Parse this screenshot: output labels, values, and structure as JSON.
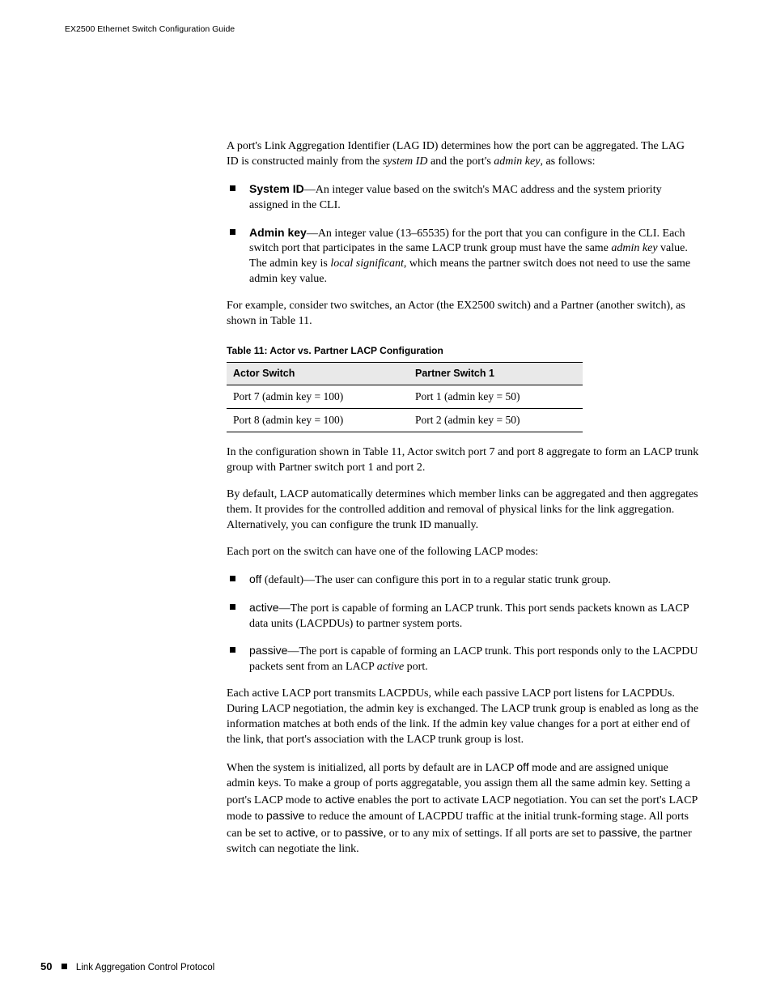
{
  "header": {
    "running_head": "EX2500 Ethernet Switch Configuration Guide"
  },
  "body": {
    "p1_a": "A port's Link Aggregation Identifier (LAG ID) determines how the port can be aggregated. The LAG ID is constructed mainly from the ",
    "p1_i1": "system ID",
    "p1_b": " and the port's ",
    "p1_i2": "admin key",
    "p1_c": ", as follows:",
    "li1_term": "System ID",
    "li1_text": "—An integer value based on the switch's MAC address and the system priority assigned in the CLI.",
    "li2_term": "Admin key",
    "li2_a": "—An integer value (13–65535) for the port that you can configure in the CLI. Each switch port that participates in the same LACP trunk group must have the same ",
    "li2_i1": "admin key",
    "li2_b": " value. The admin key is ",
    "li2_i2": "local significant",
    "li2_c": ", which means the partner switch does not need to use the same admin key value.",
    "p2": "For example, consider two switches, an Actor (the EX2500 switch) and a Partner (another switch), as shown in Table 11.",
    "table_caption": "Table 11:  Actor vs. Partner LACP Configuration",
    "table": {
      "headers": [
        "Actor Switch",
        "Partner Switch 1"
      ],
      "rows": [
        [
          "Port 7 (admin key = 100)",
          "Port 1 (admin key = 50)"
        ],
        [
          "Port 8 (admin key = 100)",
          "Port 2 (admin key = 50)"
        ]
      ]
    },
    "p3": "In the configuration shown in Table 11, Actor switch port 7 and port 8 aggregate to form an LACP trunk group with Partner switch port 1 and port 2.",
    "p4": "By default, LACP automatically determines which member links can be aggregated and then aggregates them. It provides for the controlled addition and removal of physical links for the link aggregation. Alternatively, you can configure the trunk ID manually.",
    "p5": "Each port on the switch can have one of the following LACP modes:",
    "m1_term": "off",
    "m1_text": " (default)—The user can configure this port in to a regular static trunk group.",
    "m2_term": "active",
    "m2_text": "—The port is capable of forming an LACP trunk. This port sends packets known as LACP data units (LACPDUs) to partner system ports.",
    "m3_term": "passive",
    "m3_a": "—The port is capable of forming an LACP trunk. This port responds only to the LACPDU packets sent from an LACP ",
    "m3_i": "active",
    "m3_b": " port.",
    "p6": "Each active LACP port transmits LACPDUs, while each passive LACP port listens for LACPDUs. During LACP negotiation, the admin key is exchanged. The LACP trunk group is enabled as long as the information matches at both ends of the link. If the admin key value changes for a port at either end of the link, that port's association with the LACP trunk group is lost.",
    "p7_a": "When the system is initialized, all ports by default are in LACP ",
    "p7_s1": "off",
    "p7_b": " mode and are assigned unique admin keys. To make a group of ports aggregatable, you assign them all the same admin key. Setting a port's LACP mode to ",
    "p7_s2": "active",
    "p7_c": " enables the port to activate LACP negotiation. You can set the port's LACP mode to ",
    "p7_s3": "passive",
    "p7_d": " to reduce the amount of LACPDU traffic at the initial trunk-forming stage. All ports can be set to ",
    "p7_s4": "active",
    "p7_e": ", or to ",
    "p7_s5": "passive",
    "p7_f": ", or to any mix of settings. If all ports are set to ",
    "p7_s6": "passive",
    "p7_g": ", the partner switch can negotiate the link."
  },
  "footer": {
    "page_number": "50",
    "section": "Link Aggregation Control Protocol"
  }
}
